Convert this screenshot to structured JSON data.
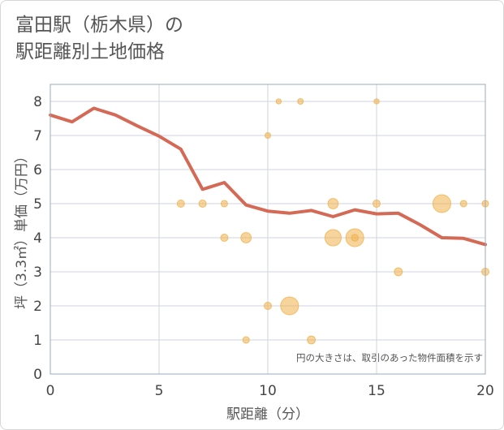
{
  "title": {
    "line1": "富田駅（栃木県）の",
    "line2": "駅距離別土地価格"
  },
  "chart_data": {
    "type": "scatter",
    "title": "富田駅（栃木県）の駅距離別土地価格",
    "xlabel": "駅距離（分）",
    "ylabel": "坪（3.3㎡）単価（万円）",
    "xlim": [
      0,
      20
    ],
    "ylim": [
      0,
      8.5
    ],
    "x_ticks": [
      "0",
      "5",
      "10",
      "15",
      "20"
    ],
    "y_ticks": [
      "0",
      "1",
      "2",
      "3",
      "4",
      "5",
      "6",
      "7",
      "8"
    ],
    "grid": true,
    "note": "円の大きさは、取引のあった物件面積を示す",
    "colors": {
      "bubble": "#f0b04a",
      "line": "#d46a56",
      "grid": "#cdd6e0",
      "plot_border": "#9aa8b8"
    },
    "series": [
      {
        "type": "bubble",
        "points": [
          {
            "x": 6,
            "y": 5.0,
            "size": 1
          },
          {
            "x": 7,
            "y": 5.0,
            "size": 1
          },
          {
            "x": 8,
            "y": 5.0,
            "size": 0.8
          },
          {
            "x": 8,
            "y": 4.0,
            "size": 1
          },
          {
            "x": 9,
            "y": 4.0,
            "size": 2
          },
          {
            "x": 9,
            "y": 1.0,
            "size": 0.8
          },
          {
            "x": 10,
            "y": 7.0,
            "size": 0.6
          },
          {
            "x": 10,
            "y": 2.0,
            "size": 1
          },
          {
            "x": 10.5,
            "y": 8.0,
            "size": 0.5
          },
          {
            "x": 11,
            "y": 2.0,
            "size": 6
          },
          {
            "x": 11.5,
            "y": 8.0,
            "size": 0.6
          },
          {
            "x": 12,
            "y": 1.0,
            "size": 1.2
          },
          {
            "x": 13,
            "y": 5.0,
            "size": 2
          },
          {
            "x": 13,
            "y": 4.0,
            "size": 5
          },
          {
            "x": 14,
            "y": 4.0,
            "size": 6
          },
          {
            "x": 14,
            "y": 4.0,
            "size": 0.9
          },
          {
            "x": 15,
            "y": 8.0,
            "size": 0.5
          },
          {
            "x": 15,
            "y": 5.0,
            "size": 1
          },
          {
            "x": 16,
            "y": 3.0,
            "size": 1.2
          },
          {
            "x": 18,
            "y": 5.0,
            "size": 6
          },
          {
            "x": 19,
            "y": 5.0,
            "size": 0.8
          },
          {
            "x": 20,
            "y": 5.0,
            "size": 0.8
          },
          {
            "x": 20,
            "y": 3.0,
            "size": 1
          }
        ]
      },
      {
        "type": "line",
        "x": [
          0,
          1,
          2,
          3,
          4,
          5,
          6,
          7,
          8,
          9,
          10,
          11,
          12,
          13,
          14,
          15,
          16,
          17,
          18,
          19,
          20
        ],
        "y": [
          7.6,
          7.4,
          7.8,
          7.6,
          7.28,
          6.98,
          6.6,
          5.42,
          5.62,
          4.96,
          4.78,
          4.72,
          4.8,
          4.62,
          4.82,
          4.7,
          4.72,
          4.38,
          4.0,
          3.98,
          3.8
        ]
      }
    ]
  }
}
